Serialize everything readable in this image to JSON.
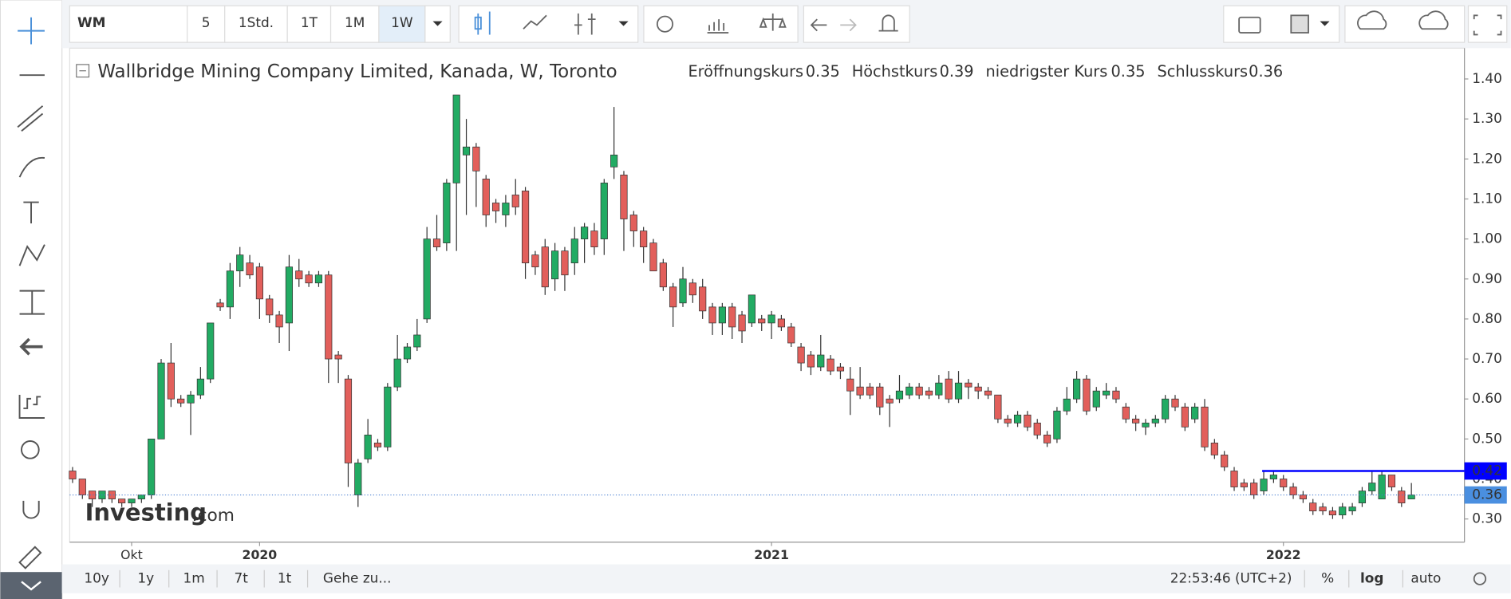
{
  "toolbar": {
    "symbol": "WM",
    "intervals": [
      "5",
      "1Std.",
      "1T",
      "1M",
      "1W"
    ]
  },
  "chart_data": {
    "type": "candlestick",
    "title": "Wallbridge Mining Company Limited, Kanada, W, Toronto",
    "ohlc_labels": [
      "Eröffnungskurs",
      "Höchstkurs",
      "niedrigster Kurs",
      "Schlusskurs"
    ],
    "up_color": "#22ab63",
    "down_color": "#e25f5b",
    "categories": [
      null,
      null,
      null,
      null,
      null,
      null,
      "Okt",
      null,
      null,
      null,
      null,
      null,
      null,
      null,
      null,
      null,
      null,
      null,
      null,
      "2020",
      null,
      null,
      null,
      null,
      null,
      null,
      null,
      null,
      null,
      null,
      null,
      null,
      null,
      null,
      null,
      null,
      null,
      null,
      null,
      null,
      null,
      null,
      null,
      null,
      null,
      null,
      null,
      null,
      null,
      null,
      null,
      null,
      null,
      null,
      null,
      null,
      null,
      null,
      null,
      null,
      null,
      null,
      null,
      null,
      null,
      null,
      null,
      null,
      null,
      null,
      null,
      "2021",
      null,
      null,
      null,
      null,
      null,
      null,
      null,
      null,
      null,
      null,
      null,
      null,
      null,
      null,
      null,
      null,
      null,
      null,
      null,
      null,
      null,
      null,
      null,
      null,
      null,
      null,
      null,
      null,
      null,
      null,
      null,
      null,
      null,
      null,
      null,
      null,
      null,
      null,
      null,
      null,
      null,
      null,
      null,
      null,
      null,
      null,
      null,
      null,
      null,
      null,
      null,
      "2022",
      null,
      null,
      null,
      null,
      null,
      null,
      null,
      null,
      null,
      null,
      null,
      null,
      null
    ],
    "open": [
      0.42,
      0.4,
      0.37,
      0.35,
      0.37,
      0.35,
      0.34,
      0.35,
      0.36,
      0.5,
      0.69,
      0.6,
      0.59,
      0.61,
      0.65,
      0.84,
      0.83,
      0.92,
      0.94,
      0.93,
      0.85,
      0.81,
      0.79,
      0.92,
      0.91,
      0.89,
      0.91,
      0.71,
      0.65,
      0.36,
      0.45,
      0.49,
      0.48,
      0.63,
      0.7,
      0.73,
      0.8,
      1.0,
      0.99,
      1.14,
      1.21,
      1.23,
      1.15,
      1.09,
      1.06,
      1.11,
      1.12,
      0.96,
      0.98,
      0.9,
      0.97,
      0.94,
      1.0,
      1.02,
      1.0,
      1.18,
      1.16,
      1.06,
      1.02,
      0.99,
      0.94,
      0.88,
      0.84,
      0.89,
      0.88,
      0.83,
      0.79,
      0.83,
      0.81,
      0.79,
      0.8,
      0.79,
      0.8,
      0.78,
      0.73,
      0.71,
      0.68,
      0.7,
      0.68,
      0.65,
      0.63,
      0.63,
      0.63,
      0.6,
      0.6,
      0.61,
      0.63,
      0.62,
      0.61,
      0.65,
      0.6,
      0.64,
      0.63,
      0.62,
      0.61,
      0.55,
      0.54,
      0.56,
      0.54,
      0.51,
      0.5,
      0.57,
      0.6,
      0.65,
      0.58,
      0.61,
      0.62,
      0.58,
      0.55,
      0.53,
      0.54,
      0.55,
      0.6,
      0.58,
      0.55,
      0.58,
      0.49,
      0.46,
      0.42,
      0.39,
      0.39,
      0.37,
      0.4,
      0.4,
      0.38,
      0.36,
      0.34,
      0.33,
      0.32,
      0.31,
      0.32,
      0.34,
      0.37,
      0.35,
      0.41,
      0.37,
      0.35
    ],
    "high": [
      0.43,
      0.4,
      0.37,
      0.37,
      0.37,
      0.35,
      0.35,
      0.36,
      0.5,
      0.7,
      0.74,
      0.61,
      0.62,
      0.68,
      0.79,
      0.85,
      0.94,
      0.98,
      0.96,
      0.94,
      0.86,
      0.82,
      0.96,
      0.95,
      0.92,
      0.92,
      0.92,
      0.72,
      0.66,
      0.45,
      0.55,
      0.5,
      0.64,
      0.76,
      0.74,
      0.8,
      1.03,
      1.06,
      1.15,
      1.36,
      1.3,
      1.24,
      1.16,
      1.1,
      1.11,
      1.15,
      1.13,
      0.97,
      1.0,
      0.99,
      0.98,
      1.03,
      1.04,
      1.04,
      1.15,
      1.33,
      1.17,
      1.07,
      1.03,
      1.0,
      0.95,
      0.89,
      0.93,
      0.9,
      0.9,
      0.84,
      0.84,
      0.84,
      0.82,
      0.86,
      0.81,
      0.82,
      0.81,
      0.79,
      0.74,
      0.72,
      0.76,
      0.71,
      0.69,
      0.68,
      0.68,
      0.64,
      0.64,
      0.61,
      0.66,
      0.64,
      0.64,
      0.63,
      0.66,
      0.67,
      0.67,
      0.65,
      0.64,
      0.63,
      0.61,
      0.56,
      0.57,
      0.57,
      0.55,
      0.52,
      0.58,
      0.63,
      0.67,
      0.66,
      0.63,
      0.64,
      0.63,
      0.59,
      0.56,
      0.55,
      0.56,
      0.61,
      0.61,
      0.59,
      0.59,
      0.6,
      0.5,
      0.47,
      0.43,
      0.4,
      0.4,
      0.42,
      0.42,
      0.41,
      0.39,
      0.37,
      0.35,
      0.34,
      0.33,
      0.34,
      0.34,
      0.38,
      0.42,
      0.42,
      0.41,
      0.38,
      0.39
    ],
    "low": [
      0.39,
      0.35,
      0.33,
      0.34,
      0.34,
      0.33,
      0.33,
      0.34,
      0.35,
      0.5,
      0.58,
      0.58,
      0.51,
      0.6,
      0.64,
      0.82,
      0.8,
      0.88,
      0.9,
      0.8,
      0.79,
      0.74,
      0.72,
      0.88,
      0.88,
      0.88,
      0.64,
      0.64,
      0.38,
      0.33,
      0.44,
      0.47,
      0.47,
      0.62,
      0.69,
      0.72,
      0.79,
      0.97,
      0.97,
      0.97,
      1.06,
      1.08,
      1.03,
      1.04,
      1.03,
      1.06,
      0.9,
      0.91,
      0.86,
      0.87,
      0.87,
      0.91,
      0.94,
      0.96,
      0.96,
      1.15,
      0.97,
      0.98,
      0.94,
      0.92,
      0.87,
      0.78,
      0.83,
      0.84,
      0.8,
      0.76,
      0.76,
      0.75,
      0.74,
      0.78,
      0.77,
      0.75,
      0.77,
      0.73,
      0.67,
      0.66,
      0.67,
      0.66,
      0.65,
      0.56,
      0.6,
      0.6,
      0.56,
      0.53,
      0.59,
      0.6,
      0.6,
      0.6,
      0.6,
      0.59,
      0.59,
      0.6,
      0.6,
      0.6,
      0.54,
      0.53,
      0.53,
      0.52,
      0.5,
      0.48,
      0.49,
      0.56,
      0.59,
      0.56,
      0.57,
      0.6,
      0.59,
      0.54,
      0.52,
      0.51,
      0.53,
      0.54,
      0.57,
      0.52,
      0.54,
      0.47,
      0.45,
      0.42,
      0.37,
      0.37,
      0.35,
      0.36,
      0.39,
      0.37,
      0.35,
      0.34,
      0.31,
      0.31,
      0.3,
      0.3,
      0.31,
      0.33,
      0.36,
      0.35,
      0.37,
      0.33,
      0.35
    ],
    "close": [
      0.4,
      0.36,
      0.35,
      0.37,
      0.35,
      0.34,
      0.35,
      0.36,
      0.5,
      0.69,
      0.6,
      0.59,
      0.61,
      0.65,
      0.79,
      0.83,
      0.92,
      0.96,
      0.91,
      0.85,
      0.81,
      0.78,
      0.93,
      0.9,
      0.89,
      0.91,
      0.7,
      0.7,
      0.44,
      0.44,
      0.51,
      0.48,
      0.63,
      0.7,
      0.73,
      0.76,
      1.0,
      0.98,
      1.14,
      1.36,
      1.23,
      1.17,
      1.06,
      1.07,
      1.09,
      1.08,
      0.94,
      0.93,
      0.88,
      0.97,
      0.91,
      1.0,
      1.03,
      0.98,
      1.14,
      1.21,
      1.05,
      1.02,
      0.98,
      0.92,
      0.88,
      0.83,
      0.9,
      0.86,
      0.82,
      0.79,
      0.83,
      0.78,
      0.77,
      0.86,
      0.79,
      0.81,
      0.78,
      0.74,
      0.69,
      0.68,
      0.71,
      0.67,
      0.67,
      0.62,
      0.61,
      0.61,
      0.58,
      0.59,
      0.62,
      0.63,
      0.61,
      0.61,
      0.64,
      0.6,
      0.64,
      0.63,
      0.62,
      0.61,
      0.55,
      0.54,
      0.56,
      0.53,
      0.51,
      0.49,
      0.57,
      0.6,
      0.65,
      0.57,
      0.62,
      0.62,
      0.6,
      0.55,
      0.54,
      0.54,
      0.55,
      0.6,
      0.58,
      0.53,
      0.58,
      0.48,
      0.46,
      0.43,
      0.38,
      0.38,
      0.36,
      0.4,
      0.41,
      0.38,
      0.36,
      0.35,
      0.32,
      0.32,
      0.31,
      0.33,
      0.33,
      0.37,
      0.39,
      0.41,
      0.38,
      0.34,
      0.36
    ],
    "ylim": [
      0.242,
      1.477
    ],
    "yticks": [
      {
        "value": 0.3,
        "label": "0.30"
      },
      {
        "value": 0.4,
        "label": "0.40"
      },
      {
        "value": 0.5,
        "label": "0.50"
      },
      {
        "value": 0.6,
        "label": "0.60"
      },
      {
        "value": 0.7,
        "label": "0.70"
      },
      {
        "value": 0.8,
        "label": "0.80"
      },
      {
        "value": 0.9,
        "label": "0.90"
      },
      {
        "value": 1.0,
        "label": "1.00"
      },
      {
        "value": 1.1,
        "label": "1.10"
      },
      {
        "value": 1.2,
        "label": "1.20"
      },
      {
        "value": 1.3,
        "label": "1.30"
      },
      {
        "value": 1.4,
        "label": "1.40"
      }
    ],
    "hline": {
      "value": 0.42,
      "color": "#0000ff"
    }
  },
  "watermark": [
    "Investing",
    ".com"
  ],
  "bottom_bar": {
    "ranges": [
      "10y",
      "1y",
      "1m",
      "7t",
      "1t"
    ],
    "goto": "Gehe zu...",
    "time": "22:53:46 (UTC+2)",
    "options": [
      "%",
      "log",
      "auto"
    ]
  }
}
